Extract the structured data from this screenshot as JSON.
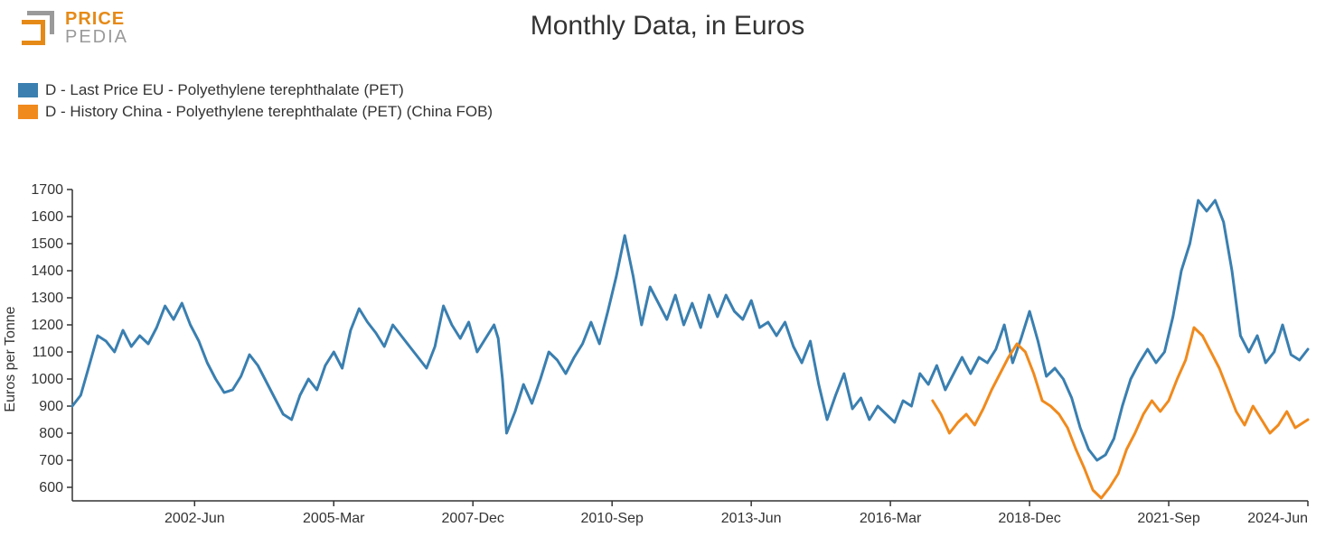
{
  "logo": {
    "top": "PRICE",
    "bottom": "PEDIA",
    "icon_color_outer": "#9a9a9a",
    "icon_color_inner": "#e68a17"
  },
  "title": "Monthly Data, in Euros",
  "ylabel": "Euros per Tonne",
  "chart": {
    "type": "line",
    "background_color": "#ffffff",
    "axis_color": "#333333",
    "tick_fontsize": 16,
    "line_width": 3,
    "x": {
      "min": 0,
      "max": 293,
      "ticks": [
        {
          "pos": 29,
          "label": "2002-Jun"
        },
        {
          "pos": 62,
          "label": "2005-Mar"
        },
        {
          "pos": 95,
          "label": "2007-Dec"
        },
        {
          "pos": 128,
          "label": "2010-Sep"
        },
        {
          "pos": 161,
          "label": "2013-Jun"
        },
        {
          "pos": 194,
          "label": "2016-Mar"
        },
        {
          "pos": 227,
          "label": "2018-Dec"
        },
        {
          "pos": 260,
          "label": "2021-Sep"
        },
        {
          "pos": 293,
          "label": "2024-Jun"
        }
      ]
    },
    "y": {
      "min": 550,
      "max": 1700,
      "ticks": [
        600,
        700,
        800,
        900,
        1000,
        1100,
        1200,
        1300,
        1400,
        1500,
        1600,
        1700
      ]
    },
    "series": [
      {
        "name": "D - Last Price EU - Polyethylene terephthalate (PET)",
        "color": "#3a7fb0",
        "data": [
          [
            0,
            900
          ],
          [
            2,
            940
          ],
          [
            4,
            1050
          ],
          [
            6,
            1160
          ],
          [
            8,
            1140
          ],
          [
            10,
            1100
          ],
          [
            12,
            1180
          ],
          [
            14,
            1120
          ],
          [
            16,
            1160
          ],
          [
            18,
            1130
          ],
          [
            20,
            1190
          ],
          [
            22,
            1270
          ],
          [
            24,
            1220
          ],
          [
            26,
            1280
          ],
          [
            28,
            1200
          ],
          [
            30,
            1140
          ],
          [
            32,
            1060
          ],
          [
            34,
            1000
          ],
          [
            36,
            950
          ],
          [
            38,
            960
          ],
          [
            40,
            1010
          ],
          [
            42,
            1090
          ],
          [
            44,
            1050
          ],
          [
            46,
            990
          ],
          [
            48,
            930
          ],
          [
            50,
            870
          ],
          [
            52,
            850
          ],
          [
            54,
            940
          ],
          [
            56,
            1000
          ],
          [
            58,
            960
          ],
          [
            60,
            1050
          ],
          [
            62,
            1100
          ],
          [
            64,
            1040
          ],
          [
            66,
            1180
          ],
          [
            68,
            1260
          ],
          [
            70,
            1210
          ],
          [
            72,
            1170
          ],
          [
            74,
            1120
          ],
          [
            76,
            1200
          ],
          [
            78,
            1160
          ],
          [
            80,
            1120
          ],
          [
            82,
            1080
          ],
          [
            84,
            1040
          ],
          [
            86,
            1120
          ],
          [
            88,
            1270
          ],
          [
            90,
            1200
          ],
          [
            92,
            1150
          ],
          [
            94,
            1210
          ],
          [
            96,
            1100
          ],
          [
            98,
            1150
          ],
          [
            100,
            1200
          ],
          [
            101,
            1150
          ],
          [
            102,
            1000
          ],
          [
            103,
            800
          ],
          [
            105,
            880
          ],
          [
            107,
            980
          ],
          [
            109,
            910
          ],
          [
            111,
            1000
          ],
          [
            113,
            1100
          ],
          [
            115,
            1070
          ],
          [
            117,
            1020
          ],
          [
            119,
            1080
          ],
          [
            121,
            1130
          ],
          [
            123,
            1210
          ],
          [
            125,
            1130
          ],
          [
            127,
            1250
          ],
          [
            129,
            1380
          ],
          [
            131,
            1530
          ],
          [
            133,
            1380
          ],
          [
            135,
            1200
          ],
          [
            137,
            1340
          ],
          [
            139,
            1280
          ],
          [
            141,
            1220
          ],
          [
            143,
            1310
          ],
          [
            145,
            1200
          ],
          [
            147,
            1280
          ],
          [
            149,
            1190
          ],
          [
            151,
            1310
          ],
          [
            153,
            1230
          ],
          [
            155,
            1310
          ],
          [
            157,
            1250
          ],
          [
            159,
            1220
          ],
          [
            161,
            1290
          ],
          [
            163,
            1190
          ],
          [
            165,
            1210
          ],
          [
            167,
            1160
          ],
          [
            169,
            1210
          ],
          [
            171,
            1120
          ],
          [
            173,
            1060
          ],
          [
            175,
            1140
          ],
          [
            177,
            980
          ],
          [
            179,
            850
          ],
          [
            181,
            940
          ],
          [
            183,
            1020
          ],
          [
            185,
            890
          ],
          [
            187,
            930
          ],
          [
            189,
            850
          ],
          [
            191,
            900
          ],
          [
            193,
            870
          ],
          [
            195,
            840
          ],
          [
            197,
            920
          ],
          [
            199,
            900
          ],
          [
            201,
            1020
          ],
          [
            203,
            980
          ],
          [
            205,
            1050
          ],
          [
            207,
            960
          ],
          [
            209,
            1020
          ],
          [
            211,
            1080
          ],
          [
            213,
            1020
          ],
          [
            215,
            1080
          ],
          [
            217,
            1060
          ],
          [
            219,
            1110
          ],
          [
            221,
            1200
          ],
          [
            223,
            1060
          ],
          [
            225,
            1150
          ],
          [
            227,
            1250
          ],
          [
            229,
            1140
          ],
          [
            231,
            1010
          ],
          [
            233,
            1040
          ],
          [
            235,
            1000
          ],
          [
            237,
            930
          ],
          [
            239,
            820
          ],
          [
            241,
            740
          ],
          [
            243,
            700
          ],
          [
            245,
            720
          ],
          [
            247,
            780
          ],
          [
            249,
            900
          ],
          [
            251,
            1000
          ],
          [
            253,
            1060
          ],
          [
            255,
            1110
          ],
          [
            257,
            1060
          ],
          [
            259,
            1100
          ],
          [
            261,
            1230
          ],
          [
            263,
            1400
          ],
          [
            265,
            1500
          ],
          [
            267,
            1660
          ],
          [
            269,
            1620
          ],
          [
            271,
            1660
          ],
          [
            273,
            1580
          ],
          [
            275,
            1400
          ],
          [
            277,
            1160
          ],
          [
            279,
            1100
          ],
          [
            281,
            1160
          ],
          [
            283,
            1060
          ],
          [
            285,
            1100
          ],
          [
            287,
            1200
          ],
          [
            289,
            1090
          ],
          [
            291,
            1070
          ],
          [
            293,
            1110
          ]
        ]
      },
      {
        "name": "D - History China - Polyethylene terephthalate (PET) (China FOB)",
        "color": "#f08a1d",
        "data": [
          [
            204,
            920
          ],
          [
            206,
            870
          ],
          [
            208,
            800
          ],
          [
            210,
            840
          ],
          [
            212,
            870
          ],
          [
            214,
            830
          ],
          [
            216,
            890
          ],
          [
            218,
            960
          ],
          [
            220,
            1020
          ],
          [
            222,
            1080
          ],
          [
            224,
            1130
          ],
          [
            226,
            1100
          ],
          [
            228,
            1020
          ],
          [
            230,
            920
          ],
          [
            232,
            900
          ],
          [
            234,
            870
          ],
          [
            236,
            820
          ],
          [
            238,
            740
          ],
          [
            240,
            670
          ],
          [
            242,
            590
          ],
          [
            244,
            560
          ],
          [
            246,
            600
          ],
          [
            248,
            650
          ],
          [
            250,
            740
          ],
          [
            252,
            800
          ],
          [
            254,
            870
          ],
          [
            256,
            920
          ],
          [
            258,
            880
          ],
          [
            260,
            920
          ],
          [
            262,
            1000
          ],
          [
            264,
            1070
          ],
          [
            266,
            1190
          ],
          [
            268,
            1160
          ],
          [
            270,
            1100
          ],
          [
            272,
            1040
          ],
          [
            274,
            960
          ],
          [
            276,
            880
          ],
          [
            278,
            830
          ],
          [
            280,
            900
          ],
          [
            282,
            850
          ],
          [
            284,
            800
          ],
          [
            286,
            830
          ],
          [
            288,
            880
          ],
          [
            290,
            820
          ],
          [
            292,
            840
          ],
          [
            293,
            850
          ]
        ]
      }
    ]
  }
}
